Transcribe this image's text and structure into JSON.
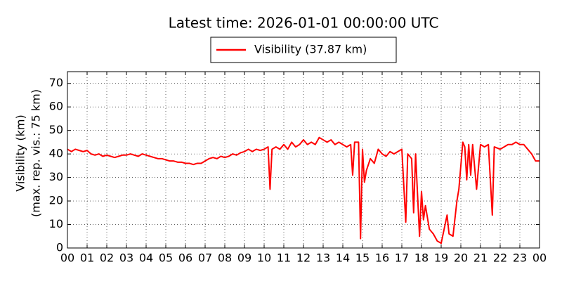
{
  "chart_data": {
    "type": "line",
    "title": "Latest time: 2026-01-01 00:00:00 UTC",
    "ylabel": [
      "Visibility (km)",
      "(max. rep. vis.: 75 km)"
    ],
    "legend_position": "top",
    "grid": true,
    "xlim": [
      0,
      24
    ],
    "ylim": [
      0,
      75
    ],
    "yticks": [
      0,
      10,
      20,
      30,
      40,
      50,
      60,
      70
    ],
    "xticks": [
      {
        "value": 0,
        "label": "00"
      },
      {
        "value": 1,
        "label": "01"
      },
      {
        "value": 2,
        "label": "02"
      },
      {
        "value": 3,
        "label": "03"
      },
      {
        "value": 4,
        "label": "04"
      },
      {
        "value": 5,
        "label": "05"
      },
      {
        "value": 6,
        "label": "06"
      },
      {
        "value": 7,
        "label": "07"
      },
      {
        "value": 8,
        "label": "08"
      },
      {
        "value": 9,
        "label": "09"
      },
      {
        "value": 10,
        "label": "10"
      },
      {
        "value": 11,
        "label": "11"
      },
      {
        "value": 12,
        "label": "12"
      },
      {
        "value": 13,
        "label": "13"
      },
      {
        "value": 14,
        "label": "14"
      },
      {
        "value": 15,
        "label": "15"
      },
      {
        "value": 16,
        "label": "16"
      },
      {
        "value": 17,
        "label": "17"
      },
      {
        "value": 18,
        "label": "18"
      },
      {
        "value": 19,
        "label": "19"
      },
      {
        "value": 20,
        "label": "20"
      },
      {
        "value": 21,
        "label": "21"
      },
      {
        "value": 22,
        "label": "22"
      },
      {
        "value": 23,
        "label": "23"
      },
      {
        "value": 24,
        "label": "00"
      }
    ],
    "x": [
      0,
      0.2,
      0.4,
      0.6,
      0.8,
      1.0,
      1.2,
      1.4,
      1.6,
      1.8,
      2.0,
      2.2,
      2.4,
      2.6,
      2.8,
      3.0,
      3.2,
      3.4,
      3.6,
      3.8,
      4.0,
      4.2,
      4.4,
      4.6,
      4.8,
      5.0,
      5.2,
      5.4,
      5.6,
      5.8,
      6.0,
      6.2,
      6.4,
      6.6,
      6.8,
      7.0,
      7.2,
      7.4,
      7.6,
      7.8,
      8.0,
      8.2,
      8.4,
      8.6,
      8.8,
      9.0,
      9.2,
      9.4,
      9.6,
      9.8,
      10.0,
      10.2,
      10.3,
      10.4,
      10.6,
      10.8,
      11.0,
      11.2,
      11.4,
      11.6,
      11.8,
      12.0,
      12.2,
      12.4,
      12.6,
      12.8,
      13.0,
      13.2,
      13.4,
      13.6,
      13.8,
      14.0,
      14.2,
      14.4,
      14.5,
      14.6,
      14.8,
      14.9,
      15.0,
      15.1,
      15.2,
      15.4,
      15.6,
      15.8,
      16.0,
      16.2,
      16.4,
      16.6,
      16.8,
      17.0,
      17.2,
      17.3,
      17.5,
      17.6,
      17.7,
      17.9,
      18.0,
      18.1,
      18.2,
      18.4,
      18.6,
      18.8,
      19.0,
      19.2,
      19.3,
      19.4,
      19.6,
      19.8,
      19.9,
      20.1,
      20.2,
      20.3,
      20.4,
      20.5,
      20.6,
      20.8,
      21.0,
      21.2,
      21.4,
      21.6,
      21.7,
      22.0,
      22.2,
      22.4,
      22.6,
      22.8,
      23.0,
      23.2,
      23.4,
      23.6,
      23.8,
      24.0
    ],
    "series": [
      {
        "name": "Visibility (37.87 km)",
        "color": "#ff0000",
        "values": [
          42,
          41,
          42,
          41.5,
          41,
          41.5,
          40,
          39.5,
          40,
          39,
          39.5,
          39,
          38.5,
          39,
          39.5,
          39.5,
          40,
          39.5,
          39,
          40,
          39.5,
          39,
          38.5,
          38,
          38,
          37.5,
          37,
          37,
          36.5,
          36.5,
          36,
          36,
          35.5,
          36,
          36,
          37,
          38,
          38.5,
          38,
          39,
          38.5,
          39,
          40,
          39.5,
          40.5,
          41,
          42,
          41,
          42,
          41.5,
          42,
          43,
          25,
          42,
          43,
          42,
          44,
          42,
          45,
          43,
          44,
          46,
          44,
          45,
          44,
          47,
          46,
          45,
          46,
          44,
          45,
          44,
          43,
          44,
          31,
          45,
          45,
          4,
          42,
          28,
          33,
          38,
          36,
          42,
          40,
          39,
          41,
          40,
          41,
          42,
          11,
          40,
          38,
          15,
          40,
          5,
          24,
          12,
          18,
          8,
          6,
          3,
          2,
          10,
          14,
          6,
          5,
          20,
          25,
          45,
          43,
          29,
          44,
          31,
          44,
          25,
          44,
          43,
          44,
          14,
          43,
          42,
          43,
          44,
          44,
          45,
          44,
          44,
          42,
          40,
          37,
          37
        ]
      }
    ]
  }
}
